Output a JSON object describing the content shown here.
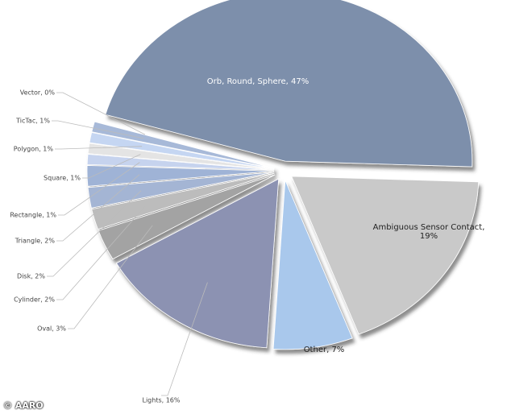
{
  "chart_data": {
    "type": "pie",
    "categories": [
      "Orb, Round, Sphere, 47%",
      "Ambiguous Sensor Contact, 19%",
      "Other, 7%",
      "Lights, 16%",
      "Oval, 3%",
      "Cylinder, 2%",
      "Disk, 2%",
      "Triangle, 2%",
      "Rectangle, 1%",
      "Square, 1%",
      "Polygon, 1%",
      "TicTac, 1%",
      "Vector, 0%"
    ],
    "values": [
      47,
      19,
      7,
      16,
      3,
      2,
      2,
      2,
      1,
      1,
      1,
      1,
      0
    ],
    "colors": [
      "#7d8fab",
      "#c9c9c9",
      "#a9c8ec",
      "#8c92b2",
      "#a3a3a3",
      "#bcbcbc",
      "#a4b5d4",
      "#9fb3d6",
      "#c6d3ee",
      "#e4e4e4",
      "#c5d6f2",
      "#a7b9d8",
      "#b9cdee"
    ],
    "source": "© AARO"
  }
}
